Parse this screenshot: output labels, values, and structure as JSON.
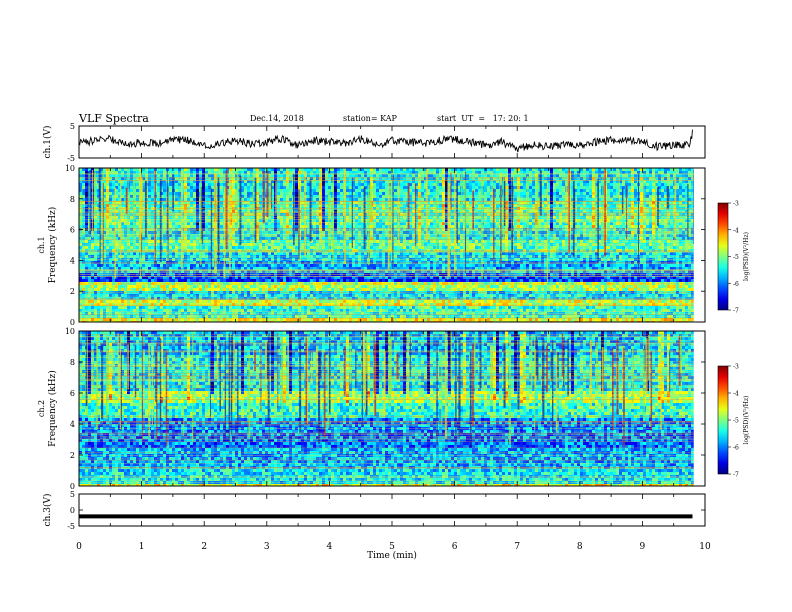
{
  "header": {
    "title": "VLF Spectra",
    "date": "Dec.14, 2018",
    "station": "station= KAP",
    "start": "start  UT  =   17: 20: 1"
  },
  "chart_data": [
    {
      "type": "line",
      "panel": "ch1",
      "ylabel": "ch.1(V)",
      "ylim": [
        -5,
        5
      ],
      "y_ticks": [
        "5",
        "-5"
      ],
      "x": [
        0,
        0.25,
        0.5,
        0.75,
        1,
        1.25,
        1.5,
        1.75,
        2,
        2.25,
        2.5,
        2.75,
        3,
        3.25,
        3.5,
        3.75,
        4,
        4.25,
        4.5,
        4.75,
        5,
        5.25,
        5.5,
        5.75,
        6,
        6.25,
        6.5,
        6.75,
        7,
        7.25,
        7.5,
        7.75,
        8,
        8.25,
        8.5,
        8.75,
        9,
        9.25,
        9.5,
        9.75,
        9.8
      ],
      "values": [
        -0.5,
        0.5,
        1,
        -1,
        0,
        -0.5,
        1,
        0.5,
        -1,
        -0.5,
        0.5,
        -0.5,
        0,
        1,
        -1,
        0.5,
        0,
        -0.5,
        1,
        -1,
        0.5,
        0,
        -0.5,
        0.5,
        1,
        0,
        -1,
        0,
        -2,
        -1,
        -1.5,
        -0.5,
        -1,
        0,
        0.5,
        0.5,
        0,
        -1.5,
        -1,
        -1,
        3
      ],
      "series_color": "#000000"
    },
    {
      "type": "heatmap",
      "panel": "ch1-spectrogram",
      "ylabel": "ch.1\nFrequency (kHz)",
      "ylim": [
        0,
        10
      ],
      "y_ticks": [
        "0",
        "2",
        "4",
        "6",
        "8",
        "10"
      ],
      "colorbar": {
        "label": "log(PSD)(V²/Hz)",
        "range": [
          -7,
          -3
        ],
        "ticks": [
          "-3",
          "-4",
          "-5",
          "-6",
          "-7"
        ]
      }
    },
    {
      "type": "heatmap",
      "panel": "ch2-spectrogram",
      "ylabel": "ch.2\nFrequency (kHz)",
      "ylim": [
        0,
        10
      ],
      "y_ticks": [
        "0",
        "2",
        "4",
        "6",
        "8",
        "10"
      ],
      "colorbar": {
        "label": "log(PSD)(V²/Hz)",
        "range": [
          -7,
          -3
        ],
        "ticks": [
          "-3",
          "-4",
          "-5",
          "-6",
          "-7"
        ]
      }
    },
    {
      "type": "line",
      "panel": "ch3",
      "ylabel": "ch.3(V)",
      "ylim": [
        -5,
        5
      ],
      "y_ticks": [
        "5",
        "0",
        "-5"
      ],
      "x": [
        0,
        9.8
      ],
      "values": [
        -2,
        -2
      ],
      "series_color": "#000000"
    }
  ],
  "x_axis": {
    "xlabel": "Time  (min)",
    "xlim": [
      0,
      10
    ],
    "ticks": [
      "0",
      "1",
      "2",
      "3",
      "4",
      "5",
      "6",
      "7",
      "8",
      "9",
      "10"
    ]
  }
}
